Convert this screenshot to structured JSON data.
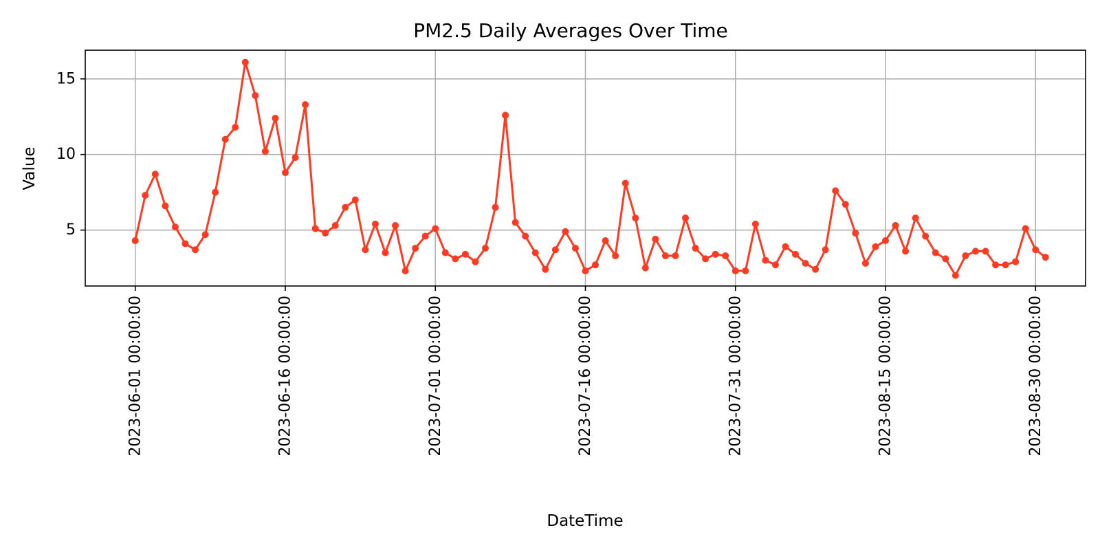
{
  "chart_data": {
    "type": "line",
    "title": "PM2.5 Daily Averages Over Time",
    "xlabel": "DateTime",
    "ylabel": "Value",
    "x_start": "2023-06-01",
    "x_end": "2023-09-01",
    "x_ticks": [
      {
        "date": "2023-06-01",
        "label": "2023-06-01 00:00:00"
      },
      {
        "date": "2023-06-16",
        "label": "2023-06-16 00:00:00"
      },
      {
        "date": "2023-07-01",
        "label": "2023-07-01 00:00:00"
      },
      {
        "date": "2023-07-16",
        "label": "2023-07-16 00:00:00"
      },
      {
        "date": "2023-07-31",
        "label": "2023-07-31 00:00:00"
      },
      {
        "date": "2023-08-15",
        "label": "2023-08-15 00:00:00"
      },
      {
        "date": "2023-08-30",
        "label": "2023-08-30 00:00:00"
      }
    ],
    "y_ticks": [
      {
        "value": 5,
        "label": "5"
      },
      {
        "value": 10,
        "label": "10"
      },
      {
        "value": 15,
        "label": "15"
      }
    ],
    "xlim": [
      "2023-05-27",
      "2023-09-04"
    ],
    "ylim": [
      1.3,
      16.9
    ],
    "grid": true,
    "line_color": "#fc3b22",
    "series": [
      {
        "x": [
          "2023-06-01",
          "2023-06-02",
          "2023-06-03",
          "2023-06-04",
          "2023-06-05",
          "2023-06-06",
          "2023-06-07",
          "2023-06-08",
          "2023-06-09",
          "2023-06-10",
          "2023-06-11",
          "2023-06-12",
          "2023-06-13",
          "2023-06-14",
          "2023-06-15",
          "2023-06-16",
          "2023-06-17",
          "2023-06-18",
          "2023-06-19",
          "2023-06-20",
          "2023-06-21",
          "2023-06-22",
          "2023-06-23",
          "2023-06-24",
          "2023-06-25",
          "2023-06-26",
          "2023-06-27",
          "2023-06-28",
          "2023-06-29",
          "2023-06-30",
          "2023-07-01",
          "2023-07-02",
          "2023-07-03",
          "2023-07-04",
          "2023-07-05",
          "2023-07-06",
          "2023-07-07",
          "2023-07-08",
          "2023-07-09",
          "2023-07-10",
          "2023-07-11",
          "2023-07-12",
          "2023-07-13",
          "2023-07-14",
          "2023-07-15",
          "2023-07-16",
          "2023-07-17",
          "2023-07-18",
          "2023-07-19",
          "2023-07-20",
          "2023-07-21",
          "2023-07-22",
          "2023-07-23",
          "2023-07-24",
          "2023-07-25",
          "2023-07-26",
          "2023-07-27",
          "2023-07-28",
          "2023-07-29",
          "2023-07-30",
          "2023-07-31",
          "2023-08-01",
          "2023-08-02",
          "2023-08-03",
          "2023-08-04",
          "2023-08-05",
          "2023-08-06",
          "2023-08-07",
          "2023-08-08",
          "2023-08-09",
          "2023-08-10",
          "2023-08-11",
          "2023-08-12",
          "2023-08-13",
          "2023-08-14",
          "2023-08-15",
          "2023-08-16",
          "2023-08-17",
          "2023-08-18",
          "2023-08-19",
          "2023-08-20",
          "2023-08-21",
          "2023-08-22",
          "2023-08-23",
          "2023-08-24",
          "2023-08-25",
          "2023-08-26",
          "2023-08-27",
          "2023-08-28",
          "2023-08-29",
          "2023-08-30",
          "2023-08-31"
        ],
        "values": [
          4.3,
          7.3,
          8.7,
          6.6,
          5.2,
          4.1,
          3.7,
          4.7,
          7.5,
          11.0,
          11.8,
          16.1,
          13.9,
          10.2,
          12.4,
          8.8,
          9.8,
          13.3,
          5.1,
          4.8,
          5.3,
          6.5,
          7.0,
          3.7,
          5.4,
          3.5,
          5.3,
          2.3,
          3.8,
          4.6,
          5.1,
          3.5,
          3.1,
          3.4,
          2.9,
          3.8,
          6.5,
          12.6,
          5.5,
          4.6,
          3.5,
          2.4,
          3.7,
          4.9,
          3.8,
          2.3,
          2.7,
          4.3,
          3.3,
          8.1,
          5.8,
          2.5,
          4.4,
          3.3,
          3.3,
          5.8,
          3.8,
          3.1,
          3.4,
          3.3,
          2.3,
          2.3,
          5.4,
          3.0,
          2.7,
          3.9,
          3.4,
          2.8,
          2.4,
          3.7,
          7.6,
          6.7,
          4.8,
          2.8,
          3.9,
          4.3,
          5.3,
          3.6,
          5.8,
          4.6,
          3.5,
          3.1,
          2.0,
          3.3,
          3.6,
          3.6,
          2.7,
          2.7,
          2.9,
          5.1,
          3.7,
          3.2
        ]
      }
    ]
  }
}
